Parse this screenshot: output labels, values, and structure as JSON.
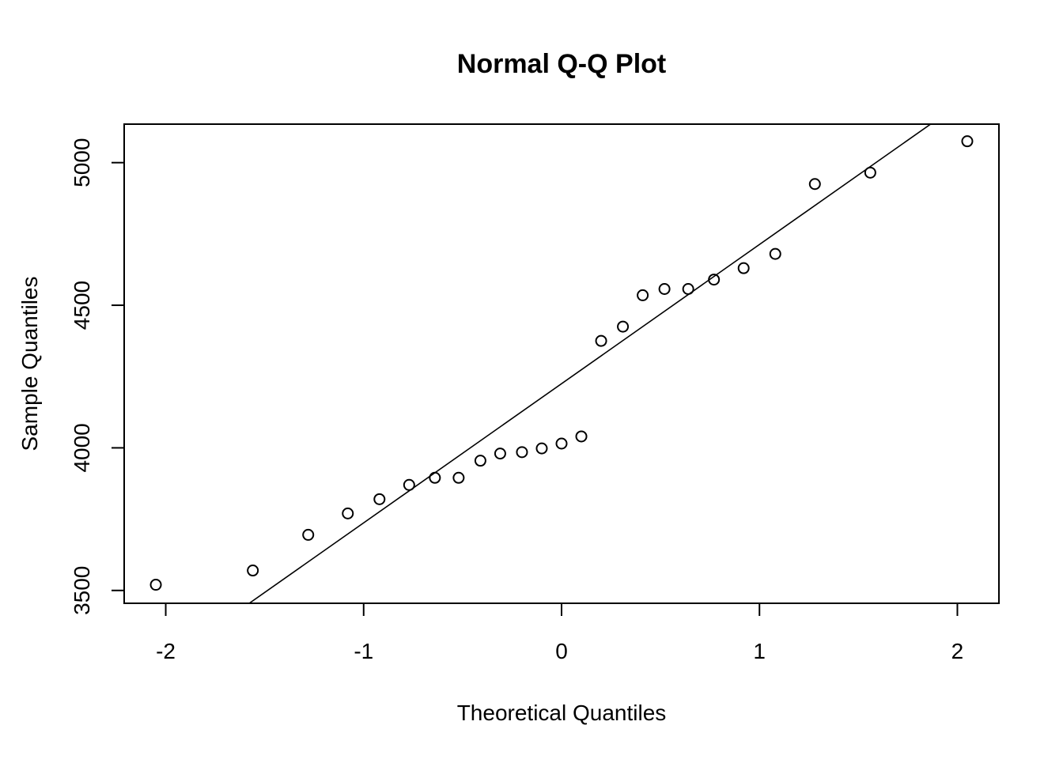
{
  "chart_data": {
    "type": "scatter",
    "title": "Normal Q-Q Plot",
    "xlabel": "Theoretical Quantiles",
    "ylabel": "Sample Quantiles",
    "xlim": [
      -2.21,
      2.21
    ],
    "ylim": [
      3455,
      5135
    ],
    "x_ticks": [
      -2,
      -1,
      0,
      1,
      2
    ],
    "x_tick_labels": [
      "-2",
      "-1",
      "0",
      "1",
      "2"
    ],
    "y_ticks": [
      3500,
      4000,
      4500,
      5000
    ],
    "y_tick_labels": [
      "3500",
      "4000",
      "4500",
      "5000"
    ],
    "grid": false,
    "legend": "none",
    "marker": "open-circle",
    "color": "#000000",
    "points": [
      {
        "x": -2.05,
        "y": 3520
      },
      {
        "x": -1.56,
        "y": 3570
      },
      {
        "x": -1.28,
        "y": 3695
      },
      {
        "x": -1.08,
        "y": 3770
      },
      {
        "x": -0.92,
        "y": 3820
      },
      {
        "x": -0.77,
        "y": 3870
      },
      {
        "x": -0.64,
        "y": 3895
      },
      {
        "x": -0.52,
        "y": 3895
      },
      {
        "x": -0.41,
        "y": 3955
      },
      {
        "x": -0.31,
        "y": 3980
      },
      {
        "x": -0.2,
        "y": 3985
      },
      {
        "x": -0.1,
        "y": 3998
      },
      {
        "x": 0.0,
        "y": 4015
      },
      {
        "x": 0.1,
        "y": 4040
      },
      {
        "x": 0.2,
        "y": 4375
      },
      {
        "x": 0.31,
        "y": 4425
      },
      {
        "x": 0.41,
        "y": 4535
      },
      {
        "x": 0.52,
        "y": 4557
      },
      {
        "x": 0.64,
        "y": 4557
      },
      {
        "x": 0.77,
        "y": 4590
      },
      {
        "x": 0.92,
        "y": 4630
      },
      {
        "x": 1.08,
        "y": 4680
      },
      {
        "x": 1.28,
        "y": 4925
      },
      {
        "x": 1.56,
        "y": 4965
      },
      {
        "x": 2.05,
        "y": 5075
      }
    ],
    "reference_line": {
      "intercept": 4225,
      "slope": 488
    }
  }
}
